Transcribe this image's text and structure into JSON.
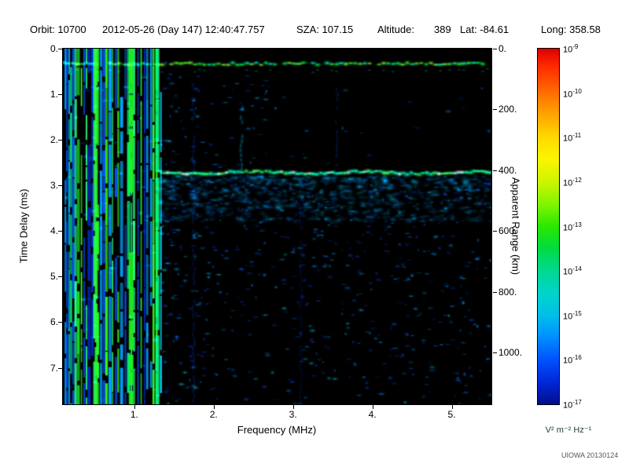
{
  "header": {
    "items": [
      "Orbit: 10700",
      "2012-05-26 (Day 147) 12:40:47.757",
      "SZA: 107.15",
      "Altitude:",
      "389",
      "Lat: -84.61",
      "Long: 358.58"
    ]
  },
  "footer": {
    "watermark": "UIOWA 20130124"
  },
  "chart_data": {
    "type": "heatmap",
    "title": "",
    "xlabel": "Frequency (MHz)",
    "ylabel": "Time Delay (ms)",
    "y2label": "Apparent Range (km)",
    "xlim": [
      0.1,
      5.5
    ],
    "ylim": [
      0,
      7.8
    ],
    "y2lim": [
      0,
      1170
    ],
    "xticks": [
      {
        "v": 1,
        "label": "1."
      },
      {
        "v": 2,
        "label": "2."
      },
      {
        "v": 3,
        "label": "3."
      },
      {
        "v": 4,
        "label": "4."
      },
      {
        "v": 5,
        "label": "5."
      }
    ],
    "yticks": [
      {
        "v": 0,
        "label": "0."
      },
      {
        "v": 1,
        "label": "1."
      },
      {
        "v": 2,
        "label": "2."
      },
      {
        "v": 3,
        "label": "3."
      },
      {
        "v": 4,
        "label": "4."
      },
      {
        "v": 5,
        "label": "5."
      },
      {
        "v": 6,
        "label": "6."
      },
      {
        "v": 7,
        "label": "7."
      }
    ],
    "y2ticks": [
      {
        "v": 0,
        "label": "0."
      },
      {
        "v": 200,
        "label": "200."
      },
      {
        "v": 400,
        "label": "400."
      },
      {
        "v": 600,
        "label": "600."
      },
      {
        "v": 800,
        "label": "800."
      },
      {
        "v": 1000,
        "label": "1000."
      }
    ],
    "colorbar": {
      "unit": "V² m⁻² Hz⁻¹",
      "base": "10",
      "tick_exponents": [
        -9,
        -10,
        -11,
        -12,
        -13,
        -14,
        -15,
        -16,
        -17
      ],
      "gradient": [
        [
          0,
          "#dd0000"
        ],
        [
          5,
          "#ff2a00"
        ],
        [
          12.5,
          "#ff6f00"
        ],
        [
          19,
          "#ffa800"
        ],
        [
          25,
          "#ffd900"
        ],
        [
          31,
          "#fdf500"
        ],
        [
          37.5,
          "#ccf500"
        ],
        [
          44,
          "#7ef400"
        ],
        [
          50,
          "#2ae800"
        ],
        [
          56,
          "#00dc40"
        ],
        [
          62.5,
          "#00d890"
        ],
        [
          69,
          "#00d4cc"
        ],
        [
          75,
          "#00bfe9"
        ],
        [
          81,
          "#0090ff"
        ],
        [
          87.5,
          "#0051ff"
        ],
        [
          94,
          "#0026d8"
        ],
        [
          100,
          "#000f8a"
        ]
      ]
    },
    "features": {
      "background": "#000000",
      "plasma_lines": {
        "f_start": 0.13,
        "f_end": 1.33,
        "count": 34,
        "colors": [
          "#18ff2a",
          "#00ff80",
          "#39ff14",
          "#00e5ff",
          "#00a2ff",
          "#0057ff",
          "#2bff88",
          "#0031e0"
        ],
        "bold": [
          {
            "f": 0.52,
            "w": 4,
            "color": "#2dff2d"
          },
          {
            "f": 0.96,
            "w": 6,
            "color": "#1fff1f"
          },
          {
            "f": 1.29,
            "w": 5,
            "color": "#00ff8c"
          }
        ]
      },
      "top_band": {
        "delay_ms": 0.33,
        "f_start": 0.1,
        "f_end": 5.5,
        "colors": [
          "#00ff55",
          "#48ff1e",
          "#00ffc8",
          "#8cff3c"
        ]
      },
      "surface_band": {
        "delay_ms": 2.72,
        "f_start": 1.32,
        "f_end": 5.5,
        "colors": [
          "#00ffd0",
          "#3cff69",
          "#b4ffee",
          "#00ff99"
        ],
        "glow_color": "#0099ff"
      },
      "scatter": {
        "count": 3200,
        "colors": [
          "#0031bb",
          "#0050ee",
          "#0073ff",
          "#00a0ff",
          "#2741dd",
          "#00c8f0"
        ]
      },
      "under_band_haze": {
        "count": 650,
        "t0": 2.8,
        "t1": 3.8,
        "colors": [
          "#00aaff",
          "#0073ff",
          "#00c8e8"
        ]
      },
      "streaks": [
        {
          "f": 1.75,
          "t0": 0.8,
          "t1": 7.8,
          "color": "#0044dd",
          "alpha": 0.33
        },
        {
          "f": 2.35,
          "t0": 1.1,
          "t1": 2.7,
          "color": "#00aacc",
          "alpha": 0.5
        },
        {
          "f": 3.1,
          "t0": 2.9,
          "t1": 7.8,
          "color": "#0033bb",
          "alpha": 0.25
        },
        {
          "f": 3.55,
          "t0": 0.9,
          "t1": 2.6,
          "color": "#0044cc",
          "alpha": 0.35
        }
      ]
    }
  }
}
